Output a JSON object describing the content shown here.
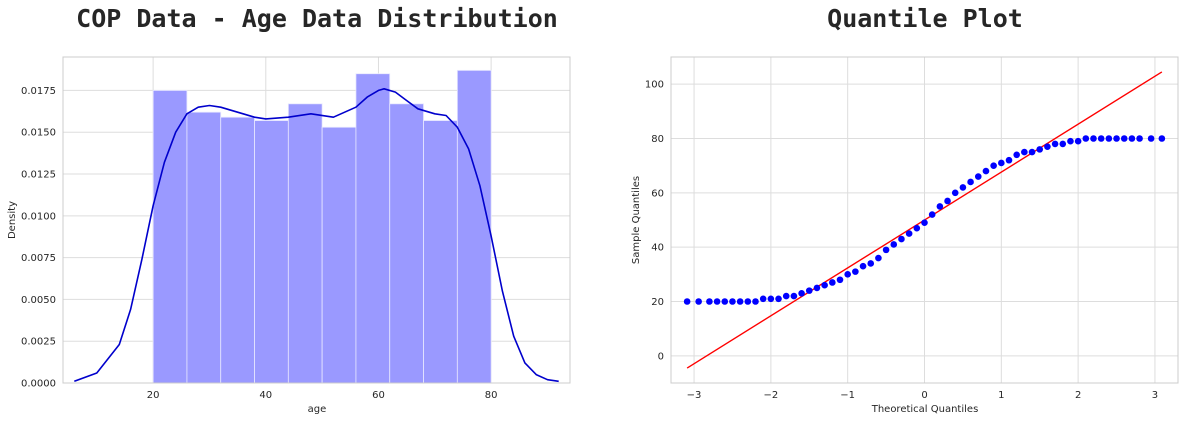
{
  "chart_data": [
    {
      "type": "histogram",
      "title": "COP Data - Age Data Distribution",
      "xlabel": "age",
      "ylabel": "Density",
      "xlim": [
        4,
        94
      ],
      "ylim": [
        0,
        0.0195
      ],
      "xticks": [
        "20",
        "40",
        "60",
        "80"
      ],
      "xtick_values": [
        20,
        40,
        60,
        80
      ],
      "yticks": [
        "0.0000",
        "0.0025",
        "0.0050",
        "0.0075",
        "0.0100",
        "0.0125",
        "0.0150",
        "0.0175"
      ],
      "ytick_values": [
        0,
        0.0025,
        0.005,
        0.0075,
        0.01,
        0.0125,
        0.015,
        0.0175
      ],
      "grid": true,
      "bar_color": "#9a99ff",
      "bar_edge_color": "#e8e8ff",
      "kde_color": "#0000cc",
      "bins": [
        {
          "x0": 20,
          "x1": 26,
          "density": 0.0175
        },
        {
          "x0": 26,
          "x1": 32,
          "density": 0.0162
        },
        {
          "x0": 32,
          "x1": 38,
          "density": 0.0159
        },
        {
          "x0": 38,
          "x1": 44,
          "density": 0.0157
        },
        {
          "x0": 44,
          "x1": 50,
          "density": 0.0167
        },
        {
          "x0": 50,
          "x1": 56,
          "density": 0.0153
        },
        {
          "x0": 56,
          "x1": 62,
          "density": 0.0185
        },
        {
          "x0": 62,
          "x1": 68,
          "density": 0.0167
        },
        {
          "x0": 68,
          "x1": 74,
          "density": 0.0157
        },
        {
          "x0": 74,
          "x1": 80,
          "density": 0.0187
        }
      ],
      "kde": {
        "x": [
          6,
          10,
          14,
          16,
          18,
          20,
          22,
          24,
          26,
          28,
          30,
          32,
          35,
          38,
          40,
          44,
          48,
          52,
          56,
          58,
          60,
          61,
          63,
          65,
          67,
          70,
          72,
          74,
          76,
          78,
          80,
          82,
          84,
          86,
          88,
          90,
          92
        ],
        "y": [
          0.0001,
          0.0006,
          0.0023,
          0.0044,
          0.0074,
          0.0106,
          0.0132,
          0.015,
          0.0161,
          0.0165,
          0.0166,
          0.0165,
          0.0162,
          0.0159,
          0.0158,
          0.0159,
          0.0161,
          0.0159,
          0.0165,
          0.0171,
          0.0175,
          0.0176,
          0.0174,
          0.0169,
          0.0164,
          0.0161,
          0.016,
          0.0153,
          0.014,
          0.0118,
          0.0088,
          0.0055,
          0.0028,
          0.0012,
          0.0005,
          0.0002,
          0.0001
        ]
      }
    },
    {
      "type": "scatter",
      "title": "Quantile Plot",
      "xlabel": "Theoretical Quantiles",
      "ylabel": "Sample Quantiles",
      "xlim": [
        -3.3,
        3.3
      ],
      "ylim": [
        -10,
        110
      ],
      "xticks": [
        "−3",
        "−2",
        "−1",
        "0",
        "1",
        "2",
        "3"
      ],
      "xtick_values": [
        -3,
        -2,
        -1,
        0,
        1,
        2,
        3
      ],
      "yticks": [
        "0",
        "20",
        "40",
        "60",
        "80",
        "100"
      ],
      "ytick_values": [
        0,
        20,
        40,
        60,
        80,
        100
      ],
      "grid": true,
      "point_color": "#0000ff",
      "line_color": "#ff0000",
      "reference_line": {
        "x": [
          -3.09,
          3.09
        ],
        "y": [
          -4.5,
          104.5
        ]
      },
      "series": [
        {
          "x": [
            -3.09,
            -2.94,
            -2.8,
            -2.7,
            -2.6,
            -2.5,
            -2.4,
            -2.3,
            -2.2,
            -2.1,
            -2.0,
            -1.9,
            -1.8,
            -1.7,
            -1.6,
            -1.5,
            -1.4,
            -1.3,
            -1.2,
            -1.1,
            -1.0,
            -0.9,
            -0.8,
            -0.7,
            -0.6,
            -0.5,
            -0.4,
            -0.3,
            -0.2,
            -0.1,
            0.0,
            0.1,
            0.2,
            0.3,
            0.4,
            0.5,
            0.6,
            0.7,
            0.8,
            0.9,
            1.0,
            1.1,
            1.2,
            1.3,
            1.4,
            1.5,
            1.6,
            1.7,
            1.8,
            1.9,
            2.0,
            2.1,
            2.2,
            2.3,
            2.4,
            2.5,
            2.6,
            2.7,
            2.8,
            2.95,
            3.09
          ],
          "y": [
            20,
            20,
            20,
            20,
            20,
            20,
            20,
            20,
            20,
            21,
            21,
            21,
            22,
            22,
            23,
            24,
            25,
            26,
            27,
            28,
            30,
            31,
            33,
            34,
            36,
            39,
            41,
            43,
            45,
            47,
            49,
            52,
            55,
            57,
            60,
            62,
            64,
            66,
            68,
            70,
            71,
            72,
            74,
            75,
            75,
            76,
            77,
            78,
            78,
            79,
            79,
            80,
            80,
            80,
            80,
            80,
            80,
            80,
            80,
            80,
            80
          ]
        }
      ]
    }
  ]
}
